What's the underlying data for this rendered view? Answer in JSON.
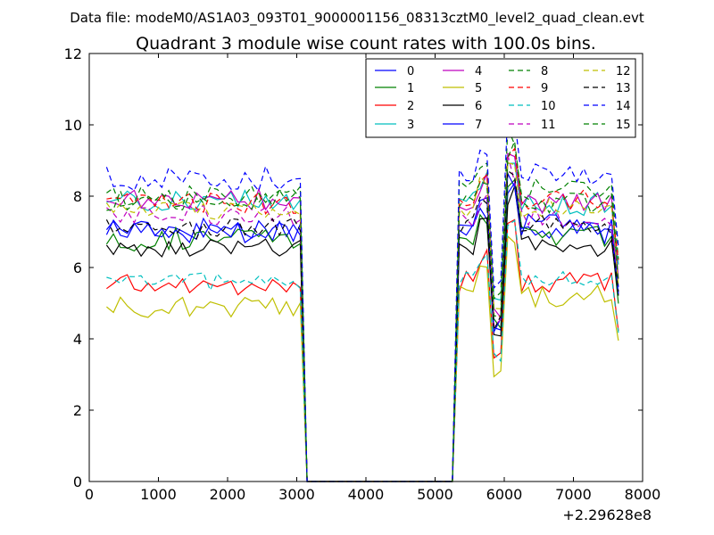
{
  "chart_data": {
    "type": "line",
    "suptitle": "Data file: modeM0/AS1A03_093T01_9000001156_08313cztM0_level2_quad_clean.evt",
    "title": "Quadrant 3 module wise count rates with 100.0s bins.",
    "xlabel": "",
    "ylabel": "",
    "x_offset_label": "+2.29628e8",
    "xlim": [
      0,
      8000
    ],
    "ylim": [
      0,
      12
    ],
    "xticks": [
      0,
      1000,
      2000,
      3000,
      4000,
      5000,
      6000,
      7000,
      8000
    ],
    "yticks": [
      0,
      2,
      4,
      6,
      8,
      10,
      12
    ],
    "xtick_labels": [
      "0",
      "1000",
      "2000",
      "3000",
      "4000",
      "5000",
      "6000",
      "7000",
      "8000"
    ],
    "ytick_labels": [
      "0",
      "2",
      "4",
      "6",
      "8",
      "10",
      "12"
    ],
    "grid": false,
    "legend_position": "top-right",
    "bin_seconds": 100,
    "x_start": 250,
    "x_end": 7650,
    "gap_start": 3150,
    "gap_end": 5250,
    "series": [
      {
        "name": "0",
        "color": "#0000ff",
        "dash": "solid",
        "base1": 7.1,
        "base2": 7.0,
        "jitter": 0.35
      },
      {
        "name": "1",
        "color": "#008000",
        "dash": "solid",
        "base1": 6.8,
        "base2": 6.9,
        "jitter": 0.35
      },
      {
        "name": "2",
        "color": "#ff0000",
        "dash": "solid",
        "base1": 5.5,
        "base2": 5.6,
        "jitter": 0.3
      },
      {
        "name": "3",
        "color": "#00bfbf",
        "dash": "solid",
        "base1": 7.9,
        "base2": 7.8,
        "jitter": 0.35
      },
      {
        "name": "4",
        "color": "#bf00bf",
        "dash": "solid",
        "base1": 7.9,
        "base2": 7.8,
        "jitter": 0.3
      },
      {
        "name": "5",
        "color": "#bfbf00",
        "dash": "solid",
        "base1": 4.9,
        "base2": 5.2,
        "jitter": 0.3
      },
      {
        "name": "6",
        "color": "#000000",
        "dash": "solid",
        "base1": 6.6,
        "base2": 6.6,
        "jitter": 0.3
      },
      {
        "name": "7",
        "color": "#0000ff",
        "dash": "solid",
        "base1": 7.0,
        "base2": 7.2,
        "jitter": 0.3
      },
      {
        "name": "8",
        "color": "#008000",
        "dash": "dashed",
        "base1": 8.0,
        "base2": 8.2,
        "jitter": 0.3
      },
      {
        "name": "9",
        "color": "#ff0000",
        "dash": "dashed",
        "base1": 7.8,
        "base2": 7.9,
        "jitter": 0.3
      },
      {
        "name": "10",
        "color": "#00bfbf",
        "dash": "dashed",
        "base1": 5.6,
        "base2": 5.7,
        "jitter": 0.25
      },
      {
        "name": "11",
        "color": "#bf00bf",
        "dash": "dashed",
        "base1": 7.5,
        "base2": 7.4,
        "jitter": 0.3
      },
      {
        "name": "12",
        "color": "#bfbf00",
        "dash": "dashed",
        "base1": 7.6,
        "base2": 7.7,
        "jitter": 0.3
      },
      {
        "name": "13",
        "color": "#000000",
        "dash": "dashed",
        "base1": 7.1,
        "base2": 7.2,
        "jitter": 0.3
      },
      {
        "name": "14",
        "color": "#0000ff",
        "dash": "dashed",
        "base1": 8.5,
        "base2": 8.6,
        "jitter": 0.35
      },
      {
        "name": "15",
        "color": "#008000",
        "dash": "dashed",
        "base1": 7.9,
        "base2": 7.8,
        "jitter": 0.3
      }
    ]
  }
}
